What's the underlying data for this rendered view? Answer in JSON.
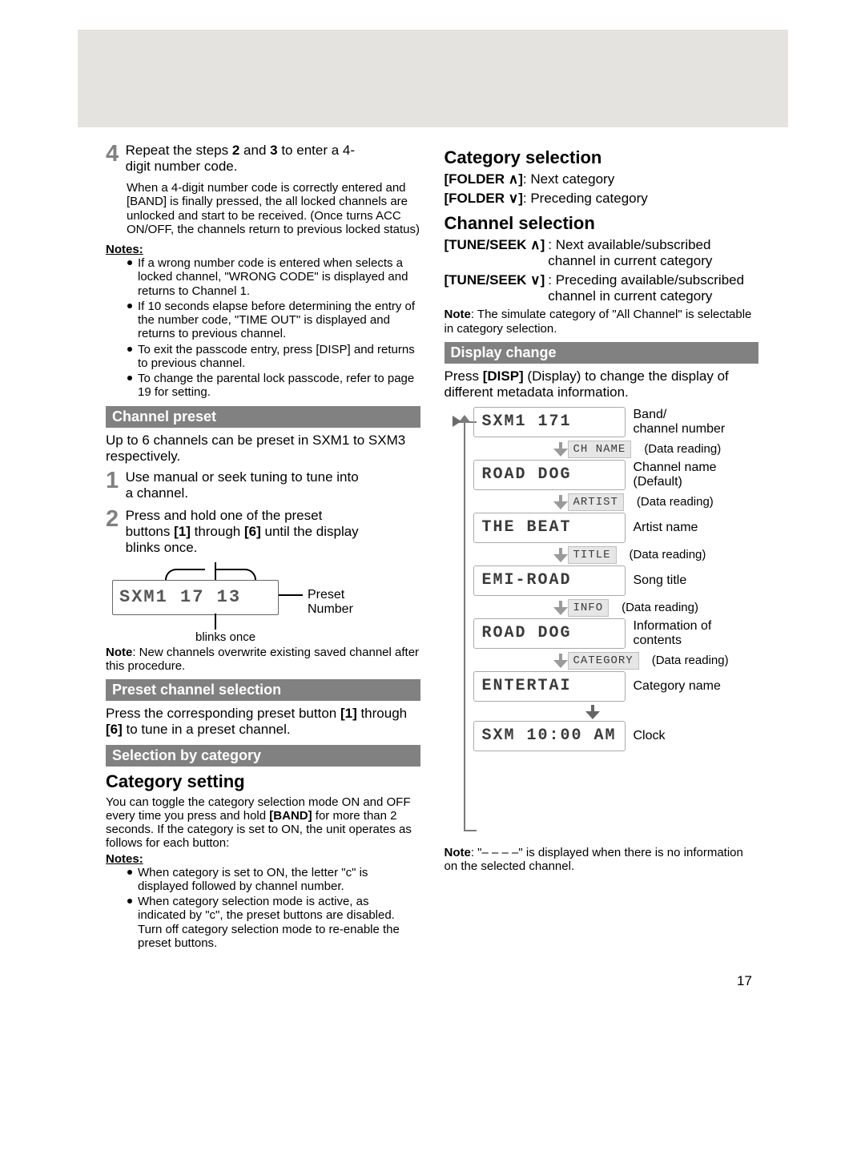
{
  "page_number": "17",
  "left": {
    "step4_num": "4",
    "step4_text_a": "Repeat the steps ",
    "step4_text_b": " and ",
    "step4_text_c": " to enter a 4-digit number code.",
    "step4_bold_2": "2",
    "step4_bold_3": "3",
    "step4_sub": "When a 4-digit number code is correctly entered and [BAND] is finally pressed, the all locked channels are unlocked and start to be received. (Once turns ACC ON/OFF, the channels return to previous locked status)",
    "notes_label": "Notes",
    "notes_bullets": [
      "If a wrong number code is entered when selects a locked channel, \"WRONG CODE\" is displayed and returns to Channel 1.",
      "If 10 seconds elapse before determining the entry of the number code, \"TIME OUT\" is displayed and returns to previous channel.",
      "To exit the passcode entry, press [DISP] and returns to previous channel.",
      "To change the parental lock passcode, refer to page 19 for setting."
    ],
    "hbar_channel_preset": "Channel preset",
    "channel_preset_intro": "Up to 6 channels can be preset in SXM1 to SXM3 respectively.",
    "step1_num": "1",
    "step1_text": "Use manual or seek tuning to tune into a channel.",
    "step2_num": "2",
    "step2_text_a": "Press and hold one of the preset buttons ",
    "step2_text_b": " through ",
    "step2_text_c": " until the display blinks once.",
    "step2_bold_1": "[1]",
    "step2_bold_6": "[6]",
    "preset_lcd": "SXM1   17 13",
    "preset_leader_label": "Preset Number",
    "blinks_once": "blinks once",
    "preset_note_a": "Note",
    "preset_note_b": ": New channels overwrite existing saved channel after this procedure.",
    "hbar_preset_channel_sel": "Preset channel selection",
    "preset_channel_sel_text_a": "Press the corresponding preset button ",
    "preset_channel_sel_text_b": " through ",
    "preset_channel_sel_text_c": " to tune in a preset channel.",
    "preset_channel_sel_bold_1": "[1]",
    "preset_channel_sel_bold_6": "[6]",
    "hbar_selection_by_cat": "Selection by category",
    "h_category_setting": "Category setting",
    "cat_setting_text_a": "You can toggle the category selection mode ON and OFF every time you press and hold ",
    "cat_setting_bold_band": "[BAND]",
    "cat_setting_text_b": " for more than 2 seconds. If the category is set to ON, the unit operates as follows for each button:",
    "cat_notes_label": "Notes",
    "cat_notes_bullets": [
      "When category is set to ON, the letter \"c\" is displayed followed by channel number.",
      "When category selection mode is active, as indicated by \"c\", the preset buttons are disabled. Turn off category selection mode to re-enable the preset buttons."
    ]
  },
  "right": {
    "h_category_selection": "Category selection",
    "folder_up_key": "[FOLDER ∧]",
    "folder_up_desc": ": Next category",
    "folder_dn_key": "[FOLDER ∨]",
    "folder_dn_desc": ": Preceding category",
    "h_channel_selection": "Channel selection",
    "tune_up_key": "[TUNE/SEEK ∧]",
    "tune_up_desc": ": Next available/subscribed channel in current category",
    "tune_dn_key": "[TUNE/SEEK ∨]",
    "tune_dn_desc": ": Preceding available/subscribed channel in current category",
    "tune_note_a": "Note",
    "tune_note_b": ": The simulate category of \"All Channel\" is selectable in category selection.",
    "hbar_display_change": "Display change",
    "display_change_text_a": "Press ",
    "display_change_bold": "[DISP]",
    "display_change_text_b": " (Display) to change the display of different metadata information.",
    "flow": [
      {
        "lcd": "SXM1   171",
        "lbl": "Band/\nchannel number"
      },
      {
        "tag": "CH NAME",
        "lbl": "(Data reading)"
      },
      {
        "lcd": "ROAD  DOG",
        "lbl": "Channel name\n(Default)"
      },
      {
        "tag": "ARTIST",
        "lbl": "(Data reading)"
      },
      {
        "lcd": "THE  BEAT",
        "lbl": "Artist name"
      },
      {
        "tag": "TITLE",
        "lbl": "(Data reading)"
      },
      {
        "lcd": "EMI-ROAD",
        "lbl": "Song title"
      },
      {
        "tag": "INFO",
        "lbl": "(Data reading)"
      },
      {
        "lcd": "ROAD  DOG",
        "lbl": "Information of\ncontents"
      },
      {
        "tag": "CATEGORY",
        "lbl": "(Data reading)"
      },
      {
        "lcd": "ENTERTAI",
        "lbl": "Category name"
      },
      {
        "spacer": true
      },
      {
        "lcd": "SXM  10:00 AM",
        "lbl": "Clock"
      }
    ],
    "disp_note_a": "Note",
    "disp_note_b": ": \"– – – –\" is displayed when there is no information on the selected channel."
  }
}
